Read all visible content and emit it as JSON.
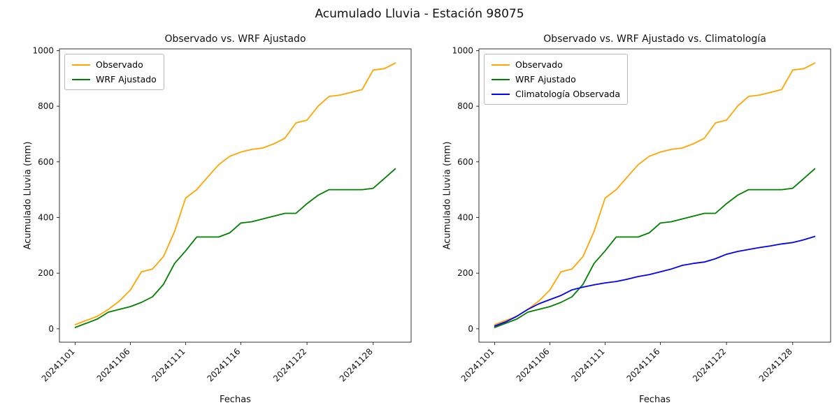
{
  "figure": {
    "title": "Acumulado Lluvia - Estación 98075",
    "background": "#ffffff"
  },
  "axis": {
    "xlabel": "Fechas",
    "ylabel": "Acumulado Lluvia (mm)",
    "yticks": [
      0,
      200,
      400,
      600,
      800,
      1000
    ],
    "ylim": [
      0,
      1000
    ],
    "xtick_labels": [
      "20241101",
      "20241106",
      "20241111",
      "20241116",
      "20241122",
      "20241128"
    ],
    "xtick_indices": [
      0,
      5,
      10,
      15,
      21,
      27
    ]
  },
  "colors": {
    "observado": "#ffa500",
    "wrf": "#008000",
    "climatologia": "#0000ff"
  },
  "chart_data": [
    {
      "type": "line",
      "title": "Observado vs. WRF Ajustado",
      "xlabel": "Fechas",
      "ylabel": "Acumulado Lluvia (mm)",
      "ylim": [
        0,
        1000
      ],
      "legend_position": "upper left",
      "grid": false,
      "x": [
        "20241101",
        "20241102",
        "20241103",
        "20241104",
        "20241105",
        "20241106",
        "20241107",
        "20241108",
        "20241109",
        "20241110",
        "20241111",
        "20241112",
        "20241113",
        "20241114",
        "20241115",
        "20241116",
        "20241117",
        "20241118",
        "20241119",
        "20241120",
        "20241121",
        "20241122",
        "20241123",
        "20241124",
        "20241125",
        "20241126",
        "20241127",
        "20241128",
        "20241129",
        "20241130"
      ],
      "series": [
        {
          "name": "Observado",
          "color": "#ffa500",
          "values": [
            15,
            30,
            45,
            70,
            100,
            140,
            205,
            215,
            260,
            350,
            470,
            500,
            545,
            590,
            620,
            635,
            645,
            650,
            665,
            685,
            740,
            750,
            800,
            835,
            840,
            850,
            860,
            930,
            935,
            955
          ]
        },
        {
          "name": "WRF Ajustado",
          "color": "#008000",
          "values": [
            5,
            20,
            35,
            60,
            70,
            80,
            95,
            115,
            160,
            235,
            280,
            330,
            330,
            330,
            345,
            380,
            385,
            395,
            405,
            415,
            415,
            450,
            480,
            500,
            500,
            500,
            500,
            505,
            540,
            575
          ]
        }
      ]
    },
    {
      "type": "line",
      "title": "Observado vs. WRF Ajustado vs. Climatología",
      "xlabel": "Fechas",
      "ylabel": "Acumulado Lluvia (mm)",
      "ylim": [
        0,
        1000
      ],
      "legend_position": "upper left",
      "grid": false,
      "x": [
        "20241101",
        "20241102",
        "20241103",
        "20241104",
        "20241105",
        "20241106",
        "20241107",
        "20241108",
        "20241109",
        "20241110",
        "20241111",
        "20241112",
        "20241113",
        "20241114",
        "20241115",
        "20241116",
        "20241117",
        "20241118",
        "20241119",
        "20241120",
        "20241121",
        "20241122",
        "20241123",
        "20241124",
        "20241125",
        "20241126",
        "20241127",
        "20241128",
        "20241129",
        "20241130"
      ],
      "series": [
        {
          "name": "Observado",
          "color": "#ffa500",
          "values": [
            15,
            30,
            45,
            70,
            100,
            140,
            205,
            215,
            260,
            350,
            470,
            500,
            545,
            590,
            620,
            635,
            645,
            650,
            665,
            685,
            740,
            750,
            800,
            835,
            840,
            850,
            860,
            930,
            935,
            955
          ]
        },
        {
          "name": "WRF Ajustado",
          "color": "#008000",
          "values": [
            5,
            20,
            35,
            60,
            70,
            80,
            95,
            115,
            160,
            235,
            280,
            330,
            330,
            330,
            345,
            380,
            385,
            395,
            405,
            415,
            415,
            450,
            480,
            500,
            500,
            500,
            500,
            505,
            540,
            575
          ]
        },
        {
          "name": "Climatología Observada",
          "color": "#0000ff",
          "values": [
            10,
            25,
            45,
            70,
            90,
            105,
            120,
            140,
            150,
            158,
            165,
            170,
            178,
            188,
            195,
            205,
            215,
            228,
            235,
            240,
            252,
            268,
            278,
            285,
            292,
            298,
            305,
            310,
            320,
            332
          ]
        }
      ]
    }
  ]
}
